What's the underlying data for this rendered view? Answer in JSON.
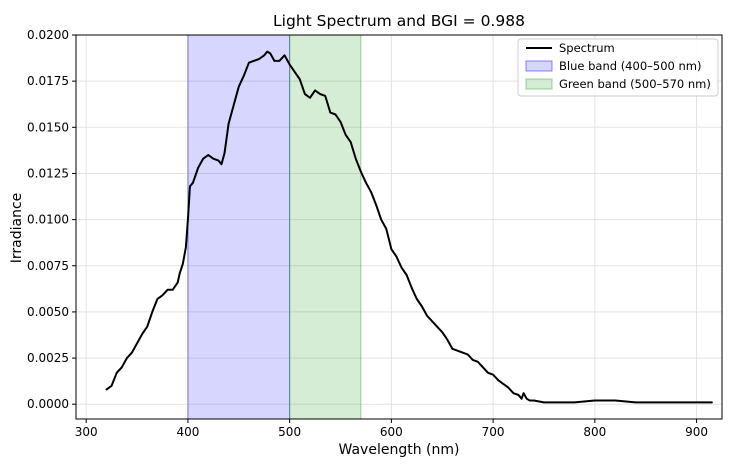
{
  "chart_data": {
    "type": "line",
    "title": "Light Spectrum and BGI = 0.988",
    "xlabel": "Wavelength (nm)",
    "ylabel": "Irradiance",
    "xlim": [
      290,
      925
    ],
    "ylim": [
      -0.0008,
      0.02
    ],
    "x_ticks": [
      300,
      400,
      500,
      600,
      700,
      800,
      900
    ],
    "y_ticks": [
      0.0,
      0.0025,
      0.005,
      0.0075,
      0.01,
      0.0125,
      0.015,
      0.0175,
      0.02
    ],
    "y_tick_labels": [
      "0.0000",
      "0.0025",
      "0.0050",
      "0.0075",
      "0.0100",
      "0.0125",
      "0.0150",
      "0.0175",
      "0.0200"
    ],
    "grid": true,
    "legend_position": "top-right",
    "bands": [
      {
        "name": "Blue band (400–500 nm)",
        "x_start": 400,
        "x_end": 500,
        "color": "#0000ff",
        "alpha": 0.16
      },
      {
        "name": "Green band (500–570 nm)",
        "x_start": 500,
        "x_end": 570,
        "color": "#2ca02c",
        "alpha": 0.2
      }
    ],
    "series": [
      {
        "name": "Spectrum",
        "color": "#000000",
        "x": [
          320,
          325,
          330,
          335,
          340,
          345,
          350,
          355,
          360,
          365,
          370,
          375,
          380,
          385,
          390,
          392,
          395,
          398,
          400,
          402,
          405,
          410,
          415,
          420,
          425,
          430,
          433,
          436,
          440,
          445,
          450,
          455,
          460,
          465,
          470,
          475,
          478,
          481,
          485,
          490,
          495,
          500,
          505,
          510,
          515,
          520,
          525,
          530,
          535,
          540,
          545,
          550,
          555,
          560,
          565,
          570,
          575,
          580,
          585,
          590,
          595,
          600,
          605,
          610,
          615,
          620,
          625,
          630,
          635,
          640,
          645,
          650,
          655,
          660,
          665,
          670,
          675,
          680,
          685,
          690,
          695,
          700,
          705,
          710,
          715,
          720,
          725,
          728,
          730,
          733,
          736,
          740,
          750,
          760,
          780,
          800,
          820,
          840,
          860,
          880,
          900,
          915
        ],
        "y": [
          0.0008,
          0.001,
          0.0017,
          0.002,
          0.0025,
          0.0028,
          0.0033,
          0.0038,
          0.0042,
          0.005,
          0.0057,
          0.0059,
          0.0062,
          0.0062,
          0.0066,
          0.0071,
          0.0076,
          0.0085,
          0.01,
          0.0118,
          0.012,
          0.0128,
          0.0133,
          0.0135,
          0.0133,
          0.0132,
          0.013,
          0.0136,
          0.0152,
          0.0162,
          0.0172,
          0.0178,
          0.0185,
          0.0186,
          0.0187,
          0.0189,
          0.0191,
          0.019,
          0.0186,
          0.0186,
          0.0189,
          0.0184,
          0.018,
          0.0176,
          0.0168,
          0.0166,
          0.017,
          0.0168,
          0.0167,
          0.0158,
          0.0157,
          0.0153,
          0.0146,
          0.0142,
          0.0133,
          0.0126,
          0.012,
          0.0115,
          0.0108,
          0.01,
          0.0095,
          0.0084,
          0.008,
          0.0074,
          0.007,
          0.0063,
          0.0057,
          0.0053,
          0.0048,
          0.0045,
          0.0042,
          0.0039,
          0.0035,
          0.003,
          0.0029,
          0.0028,
          0.0027,
          0.0024,
          0.0023,
          0.002,
          0.0017,
          0.0016,
          0.0013,
          0.0011,
          0.0009,
          0.0006,
          0.0005,
          0.0003,
          0.0006,
          0.0003,
          0.0002,
          0.0002,
          0.0001,
          0.0001,
          0.0001,
          0.0002,
          0.0002,
          0.0001,
          0.0001,
          0.0001,
          0.0001,
          0.0001
        ]
      }
    ]
  }
}
